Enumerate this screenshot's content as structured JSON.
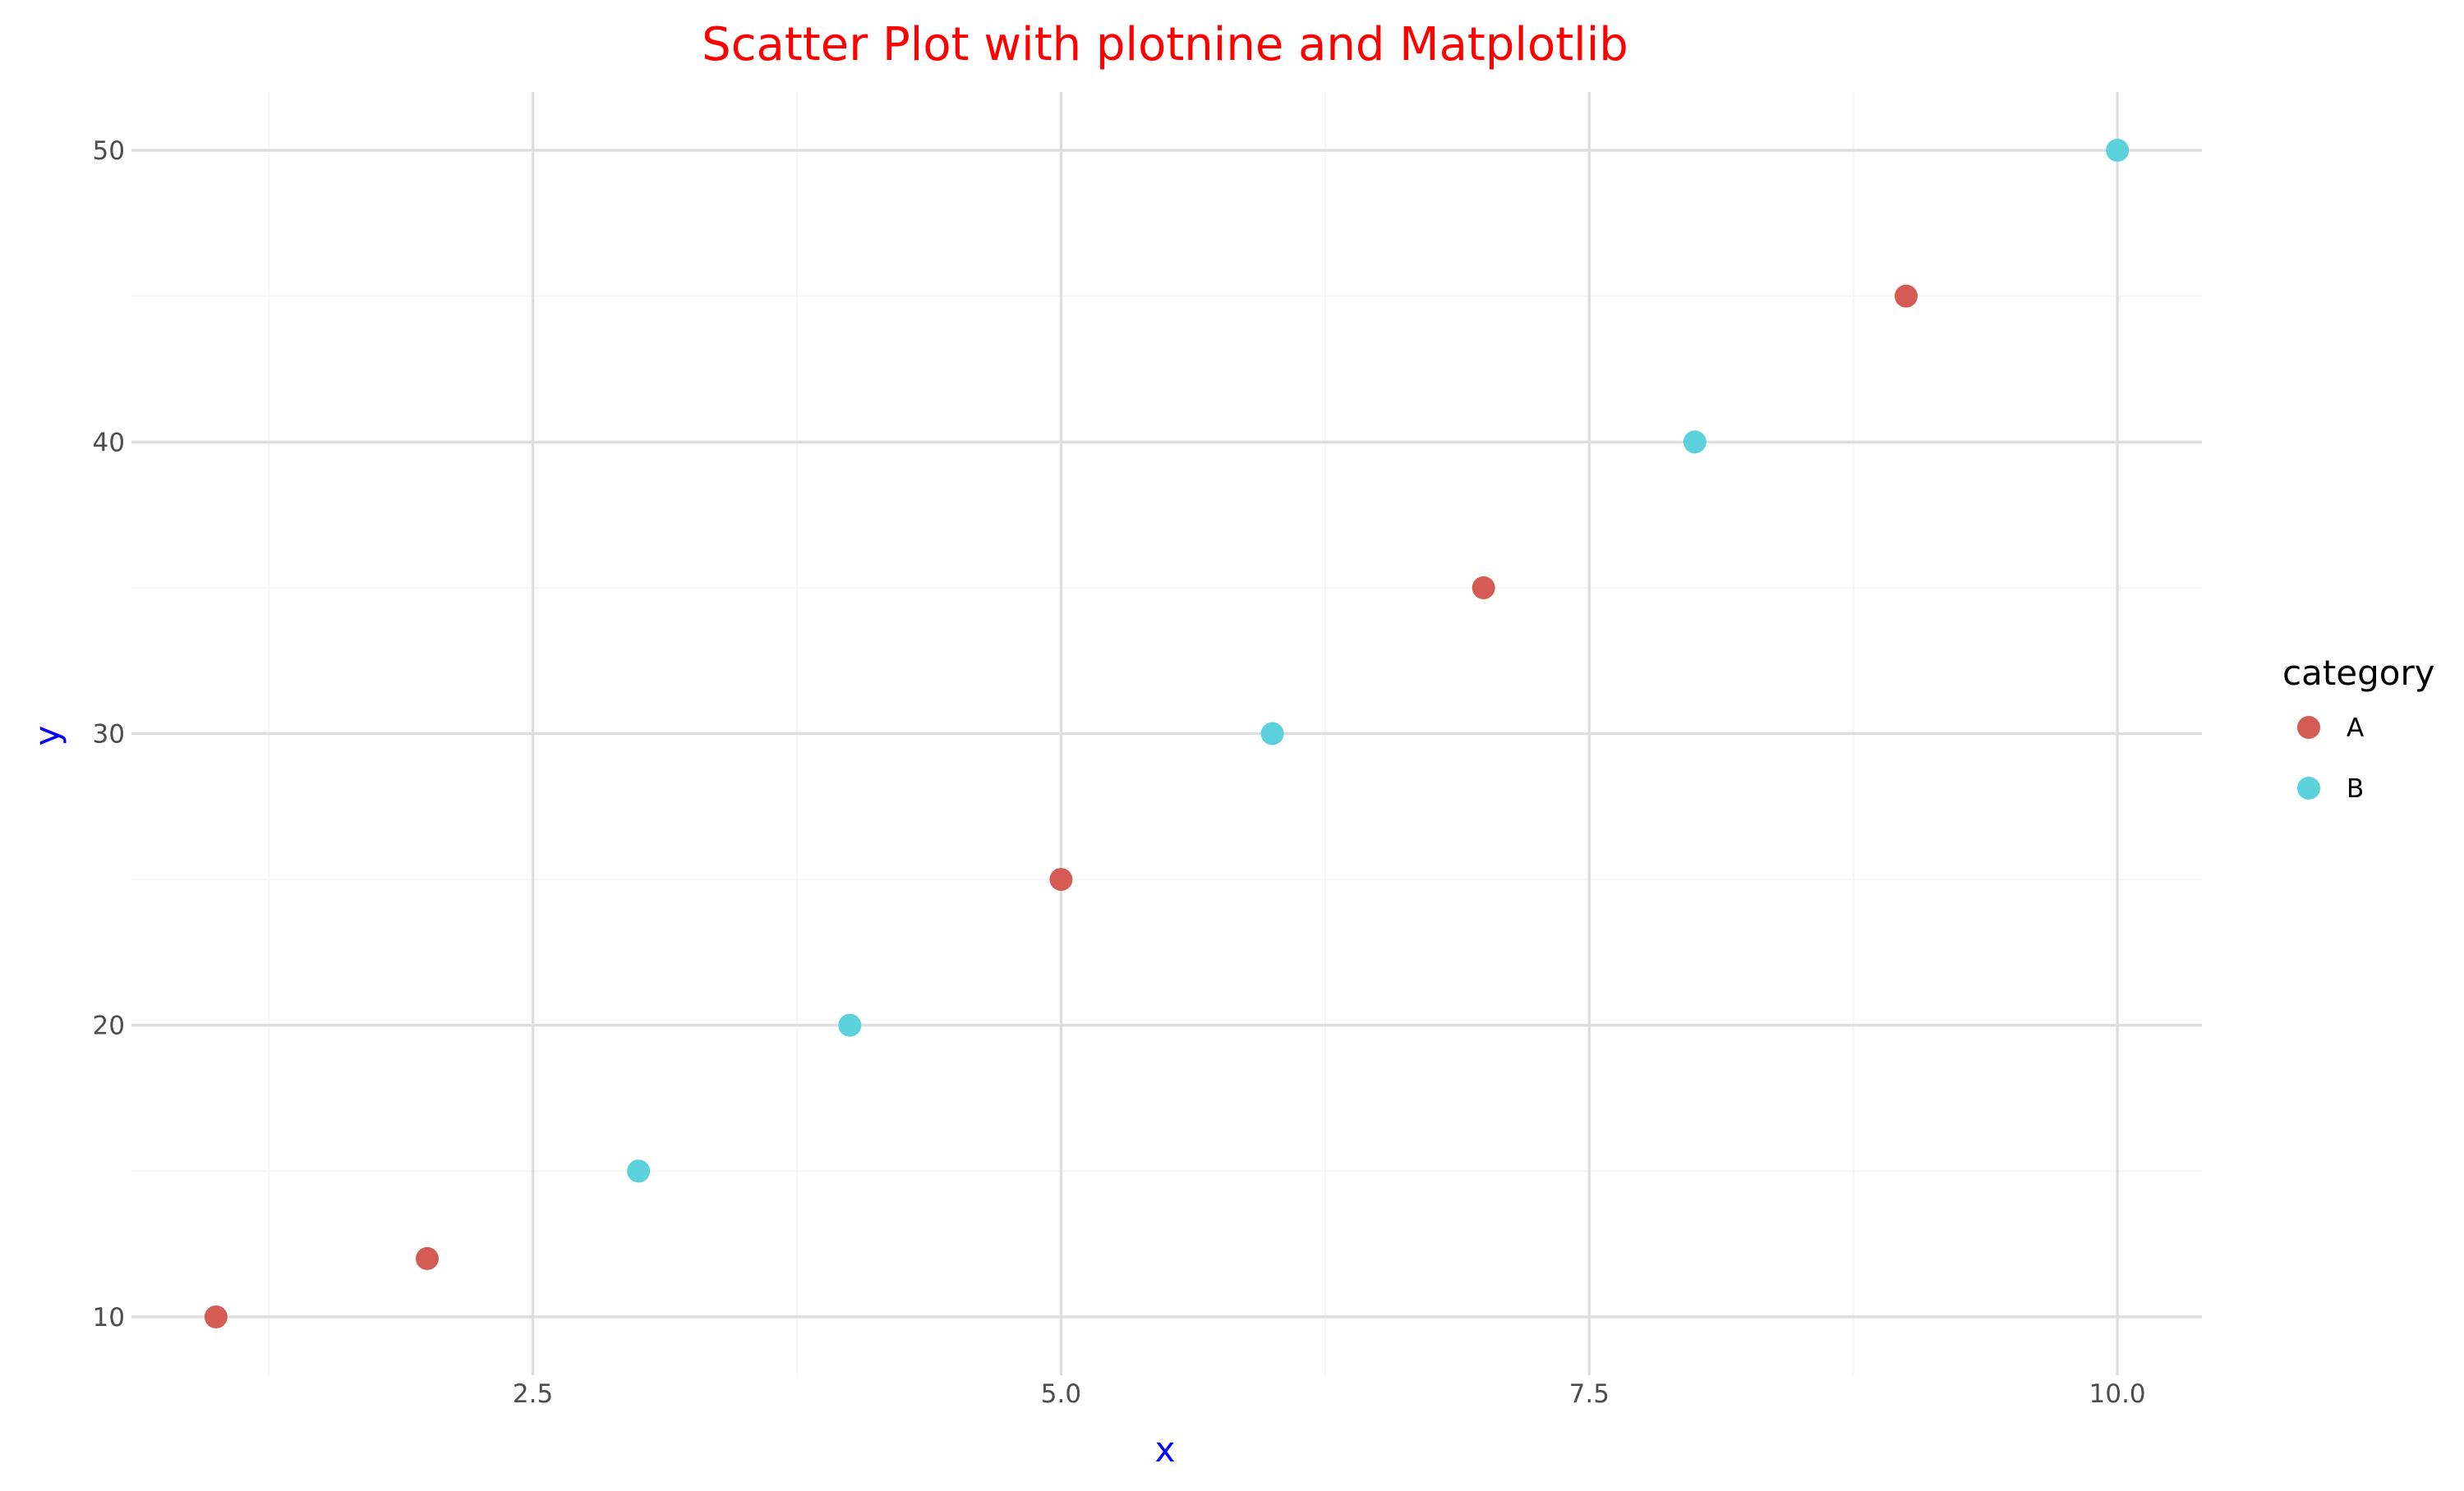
{
  "chart_data": {
    "type": "scatter",
    "title": "Scatter Plot with plotnine and Matplotlib",
    "xlabel": "x",
    "ylabel": "y",
    "xlim": [
      0.6,
      10.4
    ],
    "ylim": [
      8,
      52
    ],
    "x_ticks": [
      2.5,
      5.0,
      7.5,
      10.0
    ],
    "x_tick_labels": [
      "2.5",
      "5.0",
      "7.5",
      "10.0"
    ],
    "y_ticks": [
      10,
      20,
      30,
      40,
      50
    ],
    "y_tick_labels": [
      "10",
      "20",
      "30",
      "40",
      "50"
    ],
    "grid": true,
    "legend": {
      "title": "category",
      "placement": "right"
    },
    "series": [
      {
        "name": "A",
        "color": "#d55c55",
        "points": [
          {
            "x": 1,
            "y": 10
          },
          {
            "x": 2,
            "y": 12
          },
          {
            "x": 5,
            "y": 25
          },
          {
            "x": 7,
            "y": 35
          },
          {
            "x": 9,
            "y": 45
          }
        ]
      },
      {
        "name": "B",
        "color": "#5bd2db",
        "points": [
          {
            "x": 3,
            "y": 15
          },
          {
            "x": 4,
            "y": 20
          },
          {
            "x": 6,
            "y": 30
          },
          {
            "x": 8,
            "y": 40
          },
          {
            "x": 10,
            "y": 50
          }
        ]
      }
    ],
    "colors": {
      "title": "#ff0000",
      "axis_titles": "#0000ff",
      "tick_labels": "#4d4d4d"
    }
  }
}
